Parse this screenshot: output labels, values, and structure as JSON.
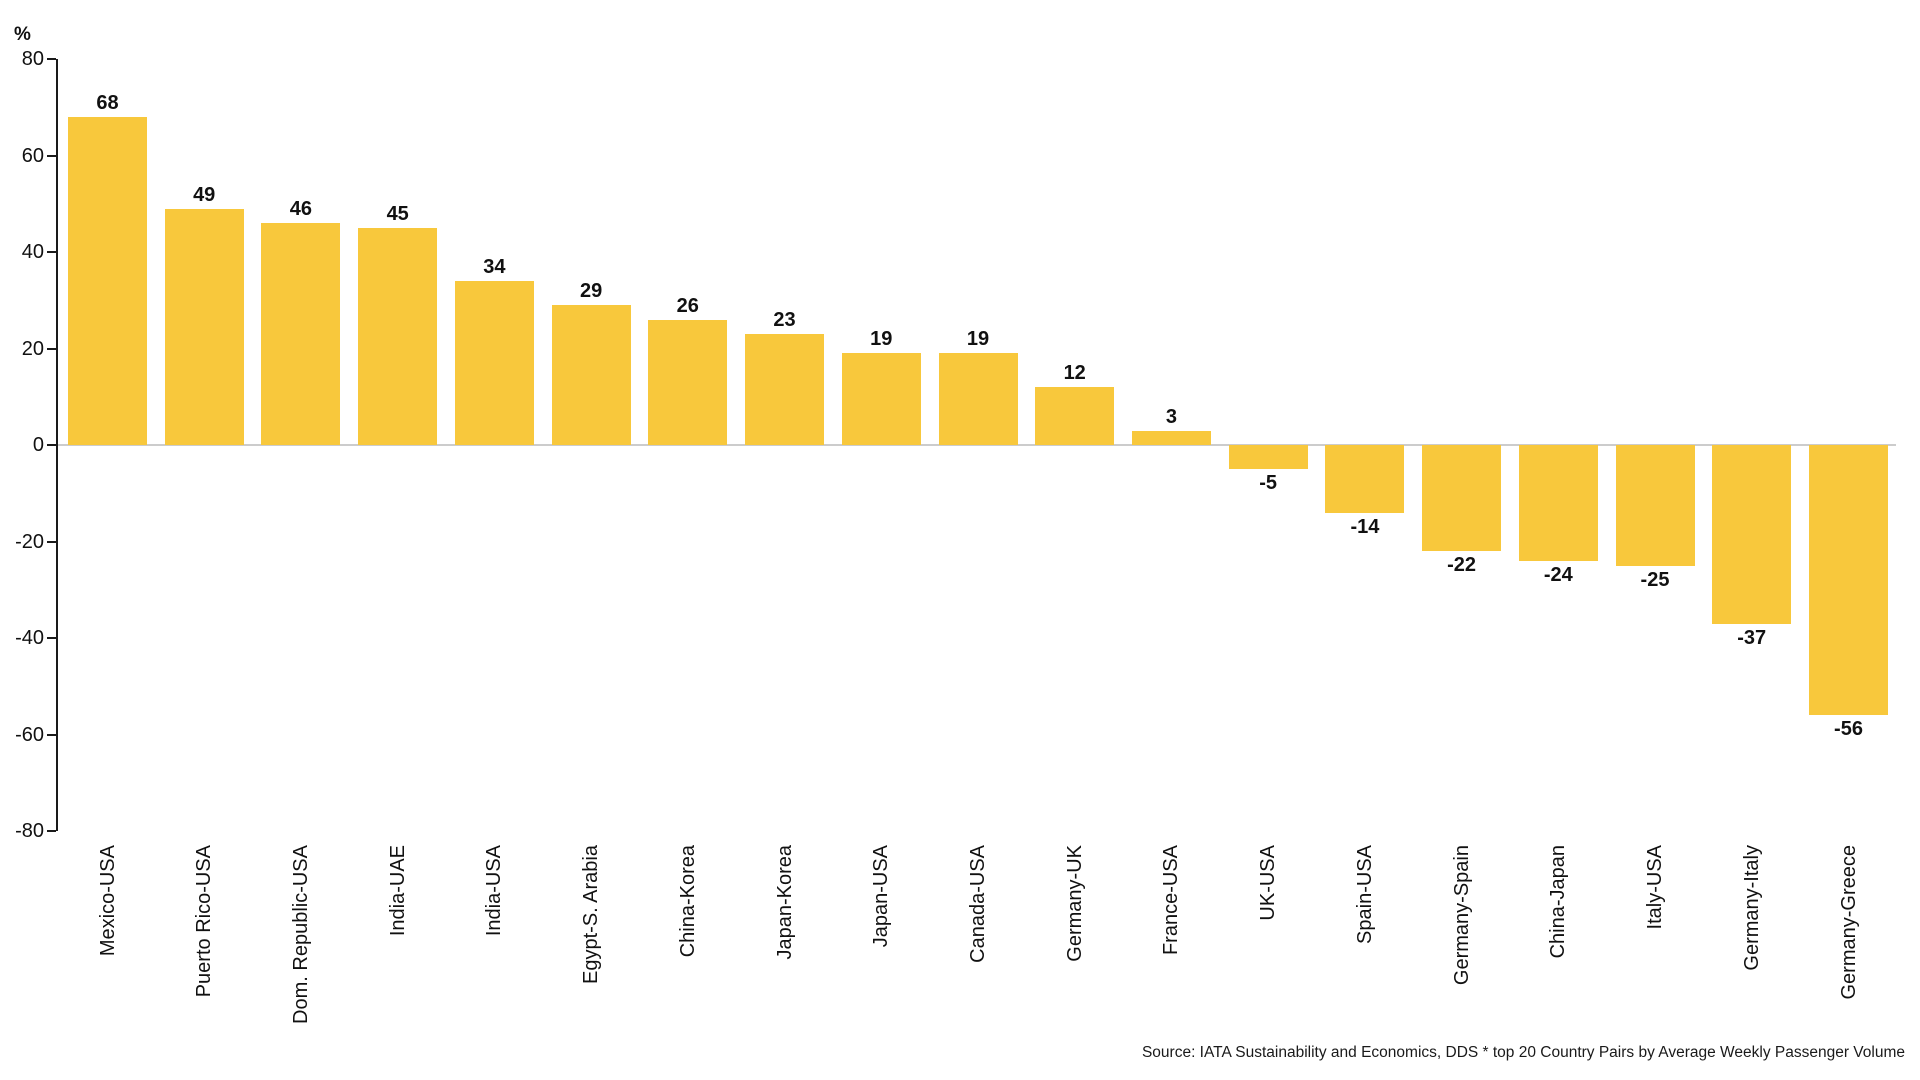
{
  "chart_data": {
    "type": "bar",
    "title": "",
    "ylabel": "%",
    "xlabel": "",
    "categories": [
      "Mexico-USA",
      "Puerto Rico-USA",
      "Dom. Republic-USA",
      "India-UAE",
      "India-USA",
      "Egypt-S. Arabia",
      "China-Korea",
      "Japan-Korea",
      "Japan-USA",
      "Canada-USA",
      "Germany-UK",
      "France-USA",
      "UK-USA",
      "Spain-USA",
      "Germany-Spain",
      "China-Japan",
      "Italy-USA",
      "Germany-Italy",
      "Germany-Greece"
    ],
    "values": [
      68,
      49,
      46,
      45,
      34,
      29,
      26,
      23,
      19,
      19,
      12,
      3,
      -5,
      -14,
      -22,
      -24,
      -25,
      -37,
      -56
    ],
    "ylim": [
      -80,
      80
    ],
    "yticks": [
      80,
      60,
      40,
      20,
      0,
      -20,
      -40,
      -60,
      -80
    ],
    "grid": false,
    "legend": "none",
    "value_labels_shown": true,
    "bar_color": "#F8C83C",
    "axis_color": "#1a1a1a",
    "zero_line_color": "#cccccc"
  },
  "footer": {
    "source": "Source: IATA Sustainability and Economics, DDS * top 20 Country Pairs by Average Weekly Passenger Volume"
  }
}
